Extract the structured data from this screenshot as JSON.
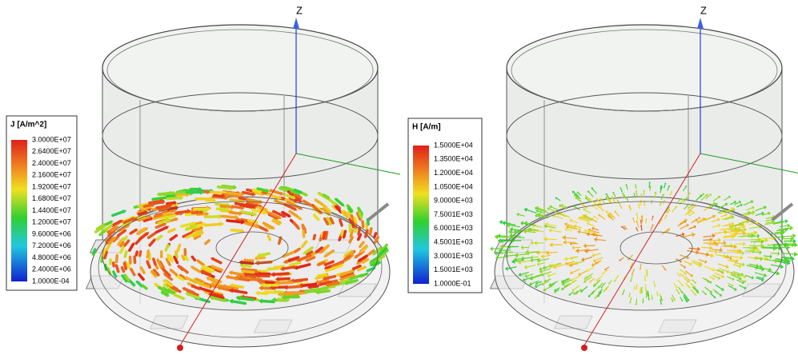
{
  "panels": [
    {
      "axis_label": "Z",
      "legend": {
        "title": "J [A/m^2]",
        "labels": [
          "3.0000E+07",
          "2.6400E+07",
          "2.4000E+07",
          "2.1600E+07",
          "1.9200E+07",
          "1.6800E+07",
          "1.4400E+07",
          "1.2000E+07",
          "9.6000E+06",
          "7.2000E+06",
          "4.8000E+06",
          "2.4000E+06",
          "1.0000E-04"
        ]
      }
    },
    {
      "axis_label": "Z",
      "legend": {
        "title": "H [A/m]",
        "labels": [
          "1.5000E+04",
          "1.3500E+04",
          "1.2000E+04",
          "1.0500E+04",
          "9.0000E+03",
          "7.5001E+03",
          "6.0001E+03",
          "4.5001E+03",
          "3.0001E+03",
          "1.5001E+03",
          "1.0000E-01"
        ]
      }
    }
  ]
}
